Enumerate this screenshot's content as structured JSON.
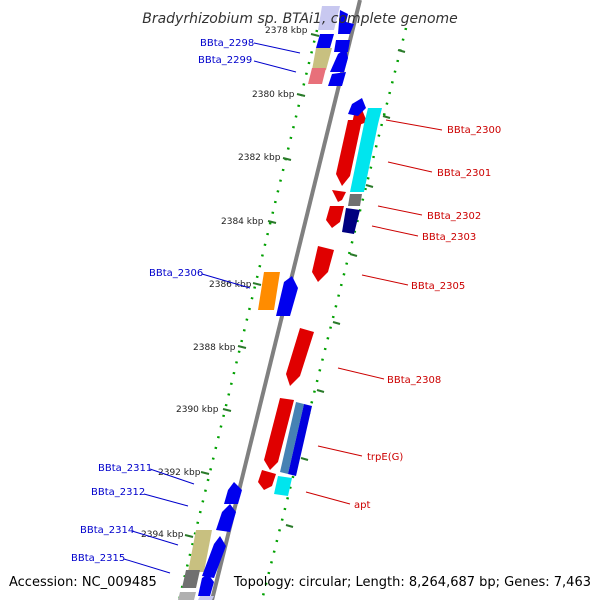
{
  "title": "Bradyrhizobium sp. BTAi1, complete genome",
  "footer": {
    "accession": "Accession: NC_009485",
    "topology": "Topology: circular; Length: 8,264,687 bp; Genes: 7,463"
  },
  "colors": {
    "backbone": "#808080",
    "forward_label": "#0000cc",
    "reverse_label": "#cc0000",
    "tick": "#2a7a2a",
    "ruler": "#00a000"
  },
  "ticks": [
    {
      "label": "2378 kbp"
    },
    {
      "label": "2380 kbp"
    },
    {
      "label": "2382 kbp"
    },
    {
      "label": "2384 kbp"
    },
    {
      "label": "2386 kbp"
    },
    {
      "label": "2388 kbp"
    },
    {
      "label": "2390 kbp"
    },
    {
      "label": "2392 kbp"
    },
    {
      "label": "2394 kbp"
    }
  ],
  "left_labels": [
    {
      "text": "BBta_2298"
    },
    {
      "text": "BBta_2299"
    },
    {
      "text": "BBta_2306"
    },
    {
      "text": "BBta_2311"
    },
    {
      "text": "BBta_2312"
    },
    {
      "text": "BBta_2314"
    },
    {
      "text": "BBta_2315"
    }
  ],
  "right_labels": [
    {
      "text": "BBta_2300"
    },
    {
      "text": "BBta_2301"
    },
    {
      "text": "BBta_2302"
    },
    {
      "text": "BBta_2303"
    },
    {
      "text": "BBta_2305"
    },
    {
      "text": "BBta_2308"
    },
    {
      "text": "trpE(G)"
    },
    {
      "text": "apt"
    }
  ]
}
